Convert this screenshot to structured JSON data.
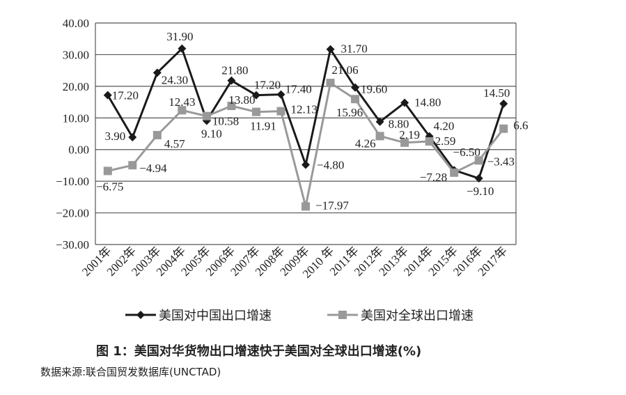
{
  "chart_data": {
    "type": "line",
    "categories": [
      "2001年",
      "2002年",
      "2003年",
      "2004年",
      "2005年",
      "2006年",
      "2007年",
      "2008年",
      "2009年",
      "2010 年",
      "2011年",
      "2012年",
      "2013年",
      "2014年",
      "2015年",
      "2016年",
      "2017年"
    ],
    "series": [
      {
        "name": "美国对中国出口增速",
        "color": "#1a1a1a",
        "marker": "diamond",
        "values": [
          17.2,
          3.9,
          24.3,
          31.9,
          9.1,
          21.8,
          17.2,
          17.4,
          -4.8,
          31.7,
          19.6,
          8.8,
          14.8,
          4.2,
          -6.5,
          -9.1,
          14.5
        ],
        "labels": [
          "17.20",
          "3.90",
          "24.30",
          "31.90",
          "9.10",
          "21.80",
          "17.20",
          "17.40",
          "−4.80",
          "31.70",
          "19.60",
          "8.80",
          "14.80",
          "4.20",
          "−6.50",
          "−9.10",
          "14.50"
        ]
      },
      {
        "name": "美国对全球出口增速",
        "color": "#999999",
        "marker": "square",
        "values": [
          -6.75,
          -4.94,
          4.57,
          12.43,
          10.58,
          13.8,
          11.91,
          12.13,
          -17.97,
          21.06,
          15.96,
          4.26,
          2.19,
          2.59,
          -7.28,
          -3.43,
          6.6
        ],
        "labels": [
          "−6.75",
          "−4.94",
          "4.57",
          "12.43",
          "10.58",
          "13.80",
          "11.91",
          "12.13",
          "−17.97",
          "21.06",
          "15.96",
          "4.26",
          "2.19",
          "2.59",
          "−7.28",
          "−3.43",
          "6.6"
        ]
      }
    ],
    "yticks": [
      "40.00",
      "30.00",
      "20.00",
      "10.00",
      "0.00",
      "−10.00",
      "−20.00",
      "−30.00"
    ],
    "ylim": [
      -30,
      40
    ],
    "grid": true,
    "legend": "bottom",
    "title": "图 1：美国对华货物出口增速快于美国对全球出口增速(%)",
    "source": "数据来源:联合国贸发数据库(UNCTAD)"
  }
}
